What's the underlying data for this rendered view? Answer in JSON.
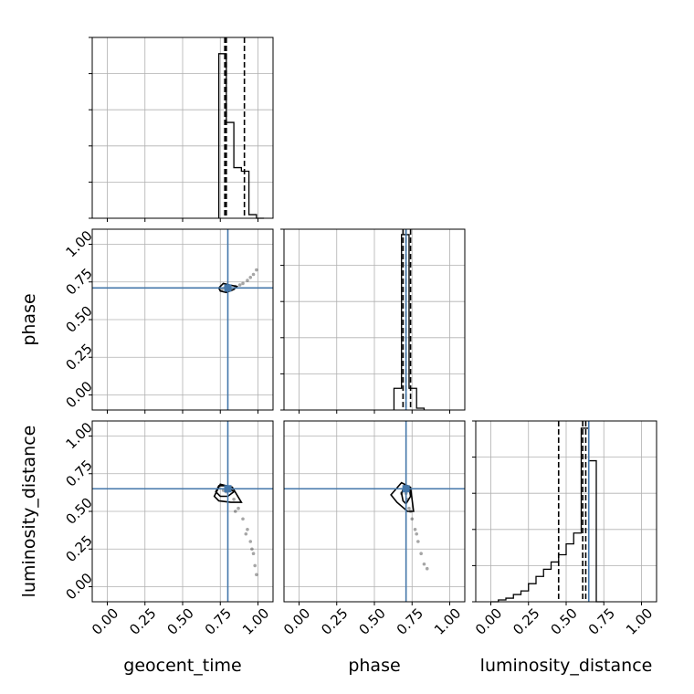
{
  "truth_color": "#4477AA",
  "hist_color": "#000000",
  "grid_color": "#b0b0b0",
  "chart_data": [
    {
      "type": "histogram",
      "variable": "geocent_time",
      "xlim": [
        -0.1,
        1.1
      ],
      "bin_edges": [
        0.74,
        0.79,
        0.84,
        0.89,
        0.94,
        0.99,
        1.04
      ],
      "counts": [
        0.91,
        0.53,
        0.28,
        0.26,
        0.02,
        0.0
      ],
      "ymax": 1.0,
      "quantiles": [
        0.78,
        0.79,
        0.91
      ],
      "truth": null,
      "show_y_ticklabels": false,
      "show_x_ticklabels": false
    },
    {
      "type": "scatter",
      "xvar": "geocent_time",
      "yvar": "phase",
      "ylabel": "phase",
      "xlim": [
        -0.1,
        1.1
      ],
      "ylim": [
        -0.1,
        1.1
      ],
      "y_ticks": [
        "0.00",
        "0.25",
        "0.50",
        "0.75",
        "1.00"
      ],
      "truth": [
        0.8,
        0.71
      ],
      "points": [
        [
          0.78,
          0.71
        ],
        [
          0.8,
          0.71
        ],
        [
          0.82,
          0.7
        ],
        [
          0.85,
          0.72
        ],
        [
          0.88,
          0.73
        ],
        [
          0.9,
          0.74
        ],
        [
          0.93,
          0.76
        ],
        [
          0.95,
          0.78
        ],
        [
          0.97,
          0.8
        ],
        [
          0.99,
          0.83
        ],
        [
          0.76,
          0.7
        ],
        [
          0.79,
          0.73
        ]
      ],
      "contours": [
        [
          [
            0.74,
            0.71
          ],
          [
            0.77,
            0.74
          ],
          [
            0.81,
            0.73
          ],
          [
            0.86,
            0.72
          ],
          [
            0.84,
            0.7
          ],
          [
            0.79,
            0.68
          ],
          [
            0.75,
            0.69
          ]
        ]
      ]
    },
    {
      "type": "histogram",
      "variable": "phase",
      "xlim": [
        -0.1,
        1.1
      ],
      "bin_edges": [
        0.63,
        0.68,
        0.73,
        0.78,
        0.83
      ],
      "counts": [
        0.12,
        0.97,
        0.12,
        0.01
      ],
      "ymax": 1.0,
      "quantiles": [
        0.69,
        0.71,
        0.74
      ],
      "truth": 0.71,
      "show_y_ticklabels": false,
      "show_x_ticklabels": false
    },
    {
      "type": "scatter",
      "xvar": "geocent_time",
      "yvar": "luminosity_distance",
      "ylabel": "luminosity_distance",
      "xlabel": "geocent_time",
      "xlim": [
        -0.1,
        1.1
      ],
      "ylim": [
        -0.1,
        1.1
      ],
      "x_ticks": [
        "0.00",
        "0.25",
        "0.50",
        "0.75",
        "1.00"
      ],
      "y_ticks": [
        "0.00",
        "0.25",
        "0.50",
        "0.75",
        "1.00"
      ],
      "truth": [
        0.8,
        0.65
      ],
      "points": [
        [
          0.77,
          0.64
        ],
        [
          0.79,
          0.63
        ],
        [
          0.81,
          0.65
        ],
        [
          0.84,
          0.58
        ],
        [
          0.87,
          0.52
        ],
        [
          0.9,
          0.45
        ],
        [
          0.93,
          0.38
        ],
        [
          0.95,
          0.3
        ],
        [
          0.97,
          0.22
        ],
        [
          0.98,
          0.14
        ],
        [
          0.99,
          0.08
        ],
        [
          0.85,
          0.5
        ],
        [
          0.92,
          0.35
        ],
        [
          0.96,
          0.25
        ]
      ],
      "contours": [
        [
          [
            0.72,
            0.63
          ],
          [
            0.74,
            0.67
          ],
          [
            0.79,
            0.67
          ],
          [
            0.84,
            0.63
          ],
          [
            0.8,
            0.6
          ],
          [
            0.75,
            0.6
          ]
        ],
        [
          [
            0.71,
            0.6
          ],
          [
            0.75,
            0.68
          ],
          [
            0.83,
            0.66
          ],
          [
            0.89,
            0.56
          ],
          [
            0.82,
            0.56
          ],
          [
            0.74,
            0.57
          ]
        ]
      ]
    },
    {
      "type": "scatter",
      "xvar": "phase",
      "yvar": "luminosity_distance",
      "xlabel": "phase",
      "xlim": [
        -0.1,
        1.1
      ],
      "ylim": [
        -0.1,
        1.1
      ],
      "x_ticks": [
        "0.00",
        "0.25",
        "0.50",
        "0.75",
        "1.00"
      ],
      "truth": [
        0.71,
        0.65
      ],
      "points": [
        [
          0.7,
          0.64
        ],
        [
          0.71,
          0.62
        ],
        [
          0.72,
          0.58
        ],
        [
          0.73,
          0.52
        ],
        [
          0.75,
          0.45
        ],
        [
          0.77,
          0.38
        ],
        [
          0.79,
          0.3
        ],
        [
          0.81,
          0.22
        ],
        [
          0.83,
          0.15
        ],
        [
          0.85,
          0.12
        ],
        [
          0.68,
          0.62
        ],
        [
          0.74,
          0.5
        ],
        [
          0.78,
          0.35
        ]
      ],
      "contours": [
        [
          [
            0.68,
            0.62
          ],
          [
            0.7,
            0.67
          ],
          [
            0.73,
            0.66
          ],
          [
            0.74,
            0.6
          ],
          [
            0.71,
            0.55
          ],
          [
            0.69,
            0.57
          ]
        ],
        [
          [
            0.61,
            0.61
          ],
          [
            0.68,
            0.69
          ],
          [
            0.74,
            0.66
          ],
          [
            0.76,
            0.5
          ],
          [
            0.72,
            0.5
          ],
          [
            0.65,
            0.56
          ]
        ]
      ]
    },
    {
      "type": "histogram",
      "variable": "luminosity_distance",
      "xlabel": "luminosity_distance",
      "xlim": [
        -0.1,
        1.1
      ],
      "x_ticks": [
        "0.00",
        "0.25",
        "0.50",
        "0.75",
        "1.00"
      ],
      "bin_edges": [
        0.0,
        0.05,
        0.1,
        0.15,
        0.2,
        0.25,
        0.3,
        0.35,
        0.4,
        0.45,
        0.5,
        0.55,
        0.6,
        0.65,
        0.7,
        0.75
      ],
      "counts": [
        0.0,
        0.01,
        0.02,
        0.04,
        0.06,
        0.1,
        0.14,
        0.18,
        0.22,
        0.26,
        0.32,
        0.38,
        0.96,
        0.78,
        0.0
      ],
      "ymax": 1.0,
      "quantiles": [
        0.45,
        0.61,
        0.63
      ],
      "truth": 0.65,
      "show_y_ticklabels": false
    }
  ]
}
